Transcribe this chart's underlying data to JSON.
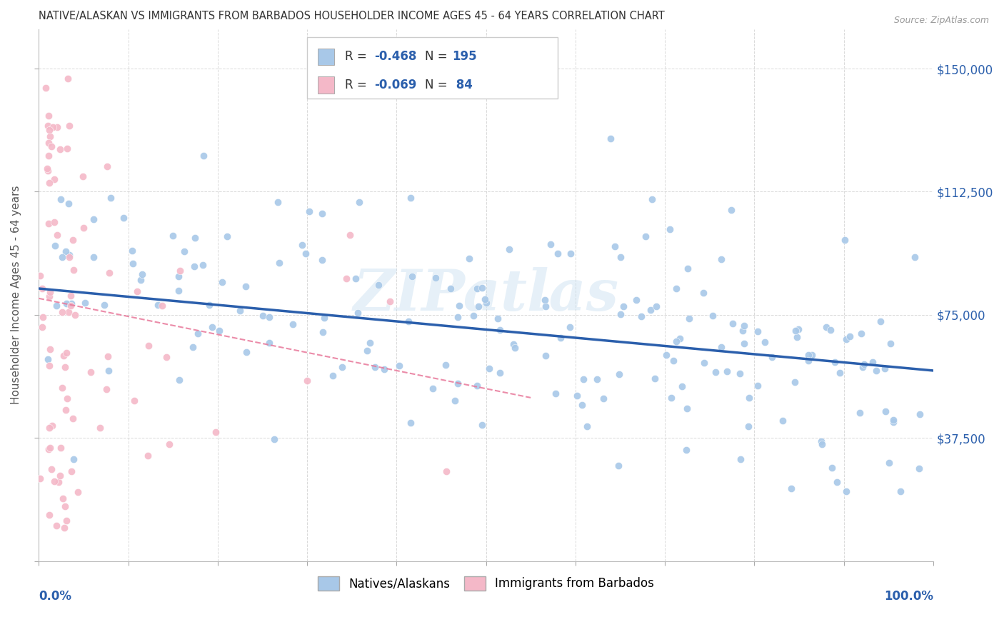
{
  "title": "NATIVE/ALASKAN VS IMMIGRANTS FROM BARBADOS HOUSEHOLDER INCOME AGES 45 - 64 YEARS CORRELATION CHART",
  "source": "Source: ZipAtlas.com",
  "ylabel": "Householder Income Ages 45 - 64 years",
  "yticks": [
    0,
    37500,
    75000,
    112500,
    150000
  ],
  "ytick_labels": [
    "",
    "$37,500",
    "$75,000",
    "$112,500",
    "$150,000"
  ],
  "blue_color": "#a8c8e8",
  "pink_color": "#f4b8c8",
  "blue_line_color": "#2b5fac",
  "pink_line_color": "#e8789a",
  "watermark": "ZIPatlas",
  "blue_N": 195,
  "pink_N": 84,
  "xmin": 0.0,
  "xmax": 1.0,
  "ymin": 0,
  "ymax": 162000,
  "title_color": "#333333",
  "axis_label_color": "#2b5fac",
  "tick_label_color_right": "#2b5fac",
  "legend_r_color": "#2b5fac",
  "legend_n_color": "#2b5fac",
  "legend_label_color": "#333333"
}
